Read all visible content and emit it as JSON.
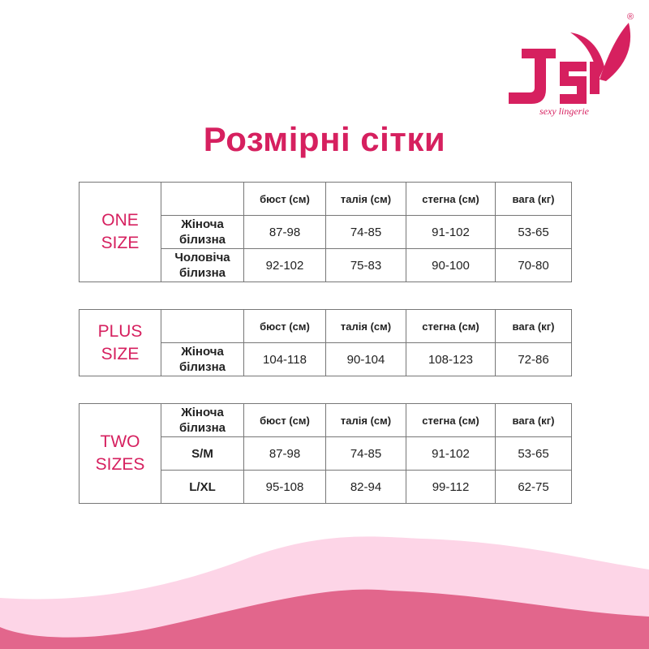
{
  "brand": {
    "logo_text": "JSY",
    "tagline": "sexy lingerie",
    "registered": "®",
    "color": "#d6205f"
  },
  "title": "Розмірні сітки",
  "headers": [
    "бюст (см)",
    "талія (см)",
    "стегна (см)",
    "вага (кг)"
  ],
  "tables": [
    {
      "label": [
        "ONE",
        "SIZE"
      ],
      "rows": [
        {
          "name": [
            "Жіноча",
            "білизна"
          ],
          "values": [
            "87-98",
            "74-85",
            "91-102",
            "53-65"
          ]
        },
        {
          "name": [
            "Чоловіча",
            "білизна"
          ],
          "values": [
            "92-102",
            "75-83",
            "90-100",
            "70-80"
          ]
        }
      ]
    },
    {
      "label": [
        "PLUS",
        "SIZE"
      ],
      "rows": [
        {
          "name": [
            "Жіноча",
            "білизна"
          ],
          "values": [
            "104-118",
            "90-104",
            "108-123",
            "72-86"
          ]
        }
      ]
    },
    {
      "label": [
        "TWO",
        "SIZES"
      ],
      "corner": [
        "Жіноча",
        "білизна"
      ],
      "rows": [
        {
          "name": [
            "S/M",
            ""
          ],
          "values": [
            "87-98",
            "74-85",
            "91-102",
            "53-65"
          ]
        },
        {
          "name": [
            "L/XL",
            ""
          ],
          "values": [
            "95-108",
            "82-94",
            "99-112",
            "62-75"
          ]
        }
      ]
    }
  ],
  "colors": {
    "wave_light": "#fdd5e7",
    "wave_dark": "#e2668c"
  }
}
